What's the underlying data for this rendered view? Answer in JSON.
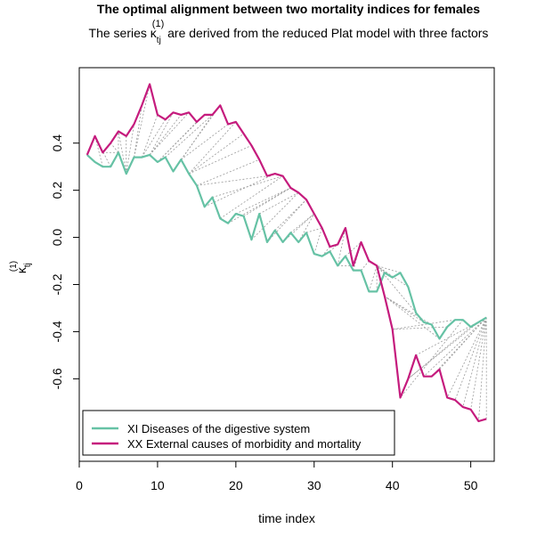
{
  "chart_data": {
    "type": "line",
    "title": "The optimal alignment between two mortality indices for females",
    "subtitle_prefix": "The series ",
    "subtitle_symbol": "κ",
    "subtitle_subscript": "tj",
    "subtitle_superscript": "(1)",
    "subtitle_suffix": " are derived from the reduced Plat model with three factors",
    "xlabel": "time index",
    "ylabel_symbol": "κ",
    "ylabel_subscript": "tj",
    "ylabel_superscript": "(1)",
    "xlim": [
      0,
      53
    ],
    "ylim": [
      -0.95,
      0.72
    ],
    "xticks": [
      0,
      10,
      20,
      30,
      40,
      50
    ],
    "yticks": [
      -0.6,
      -0.4,
      -0.2,
      0.0,
      0.2,
      0.4
    ],
    "ytick_labels": [
      "-0.6",
      "-0.4",
      "-0.2",
      "0.0",
      "0.2",
      "0.4"
    ],
    "legend_position": "bottom-left",
    "colors": {
      "xi": "#66c2a5",
      "xx": "#c51b7d",
      "alignment": "#999999"
    },
    "series": [
      {
        "key": "xi",
        "name": "XI Diseases of the digestive system",
        "x": [
          1,
          2,
          3,
          4,
          5,
          6,
          7,
          8,
          9,
          10,
          11,
          12,
          13,
          14,
          15,
          16,
          17,
          18,
          19,
          20,
          21,
          22,
          23,
          24,
          25,
          26,
          27,
          28,
          29,
          30,
          31,
          32,
          33,
          34,
          35,
          36,
          37,
          38,
          39,
          40,
          41,
          42,
          43,
          44,
          45,
          46,
          47,
          48,
          49,
          50,
          51,
          52
        ],
        "values": [
          0.35,
          0.32,
          0.3,
          0.3,
          0.36,
          0.27,
          0.34,
          0.34,
          0.35,
          0.32,
          0.34,
          0.28,
          0.33,
          0.27,
          0.22,
          0.13,
          0.17,
          0.08,
          0.06,
          0.1,
          0.09,
          -0.01,
          0.1,
          -0.02,
          0.03,
          -0.02,
          0.02,
          -0.02,
          0.02,
          -0.07,
          -0.08,
          -0.06,
          -0.12,
          -0.08,
          -0.14,
          -0.14,
          -0.23,
          -0.23,
          -0.15,
          -0.17,
          -0.15,
          -0.21,
          -0.32,
          -0.36,
          -0.37,
          -0.43,
          -0.38,
          -0.35,
          -0.35,
          -0.38,
          -0.36,
          -0.34
        ]
      },
      {
        "key": "xx",
        "name": "XX External causes of morbidity and mortality",
        "x": [
          1,
          2,
          3,
          4,
          5,
          6,
          7,
          8,
          9,
          10,
          11,
          12,
          13,
          14,
          15,
          16,
          17,
          18,
          19,
          20,
          21,
          22,
          23,
          24,
          25,
          26,
          27,
          28,
          29,
          30,
          31,
          32,
          33,
          34,
          35,
          36,
          37,
          38,
          39,
          40,
          41,
          42,
          43,
          44,
          45,
          46,
          47,
          48,
          49,
          50,
          51,
          52
        ],
        "values": [
          0.35,
          0.43,
          0.36,
          0.4,
          0.45,
          0.43,
          0.48,
          0.56,
          0.65,
          0.52,
          0.5,
          0.53,
          0.52,
          0.53,
          0.49,
          0.52,
          0.52,
          0.56,
          0.48,
          0.49,
          0.44,
          0.39,
          0.33,
          0.26,
          0.27,
          0.26,
          0.21,
          0.19,
          0.16,
          0.1,
          0.04,
          -0.04,
          -0.03,
          0.04,
          -0.12,
          -0.02,
          -0.1,
          -0.12,
          -0.25,
          -0.39,
          -0.68,
          -0.6,
          -0.5,
          -0.59,
          -0.59,
          -0.56,
          -0.68,
          -0.69,
          -0.72,
          -0.73,
          -0.78,
          -0.77
        ],
        "note": "x positions of XX series spread across 1..52"
      }
    ],
    "alignment_pairs": [
      [
        1,
        1
      ],
      [
        2,
        1
      ],
      [
        3,
        2
      ],
      [
        4,
        2
      ],
      [
        5,
        3
      ],
      [
        5,
        4
      ],
      [
        5,
        5
      ],
      [
        6,
        5
      ],
      [
        6,
        6
      ],
      [
        6,
        7
      ],
      [
        7,
        8
      ],
      [
        7,
        9
      ],
      [
        8,
        10
      ],
      [
        8,
        11
      ],
      [
        9,
        12
      ],
      [
        9,
        13
      ],
      [
        9,
        14
      ],
      [
        10,
        15
      ],
      [
        10,
        16
      ],
      [
        11,
        17
      ],
      [
        12,
        17
      ],
      [
        13,
        18
      ],
      [
        13,
        19
      ],
      [
        14,
        20
      ],
      [
        14,
        21
      ],
      [
        14,
        22
      ],
      [
        15,
        23
      ],
      [
        15,
        24
      ],
      [
        16,
        25
      ],
      [
        17,
        26
      ],
      [
        18,
        26
      ],
      [
        19,
        27
      ],
      [
        20,
        27
      ],
      [
        21,
        27
      ],
      [
        22,
        28
      ],
      [
        23,
        28
      ],
      [
        24,
        29
      ],
      [
        25,
        29
      ],
      [
        26,
        30
      ],
      [
        27,
        30
      ],
      [
        28,
        30
      ],
      [
        29,
        31
      ],
      [
        30,
        31
      ],
      [
        31,
        32
      ],
      [
        32,
        33
      ],
      [
        33,
        34
      ],
      [
        33,
        35
      ],
      [
        34,
        36
      ],
      [
        35,
        36
      ],
      [
        36,
        37
      ],
      [
        37,
        38
      ],
      [
        38,
        38
      ],
      [
        39,
        38
      ],
      [
        40,
        38
      ],
      [
        41,
        38
      ],
      [
        42,
        38
      ],
      [
        43,
        38
      ],
      [
        44,
        39
      ],
      [
        45,
        39
      ],
      [
        46,
        39
      ],
      [
        47,
        40
      ],
      [
        48,
        40
      ],
      [
        49,
        41
      ],
      [
        50,
        42
      ],
      [
        51,
        42
      ],
      [
        52,
        43
      ],
      [
        52,
        44
      ],
      [
        52,
        45
      ],
      [
        52,
        46
      ],
      [
        52,
        47
      ],
      [
        52,
        48
      ],
      [
        52,
        49
      ],
      [
        52,
        50
      ],
      [
        52,
        51
      ],
      [
        52,
        52
      ]
    ]
  }
}
